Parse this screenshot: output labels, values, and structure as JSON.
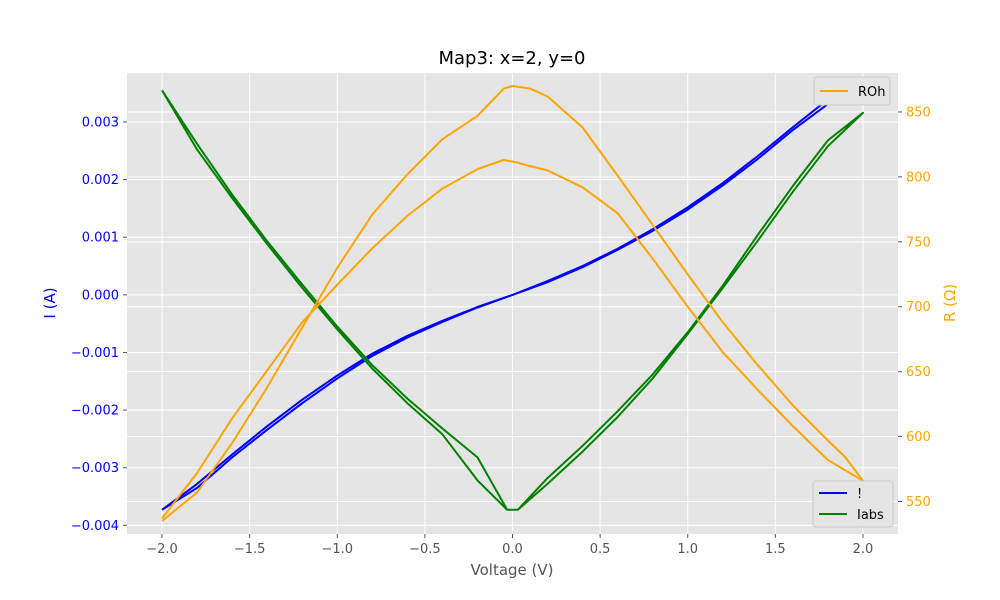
{
  "chart_data": {
    "type": "line",
    "title": "Map3: x=2, y=0",
    "xlabel": "Voltage (V)",
    "ylabel_left": "I (A)",
    "ylabel_right": "R (Ω)",
    "xlim": [
      -2.2,
      2.2
    ],
    "ylim_left": [
      -0.00415,
      0.00385
    ],
    "ylim_right": [
      525,
      880
    ],
    "xticks": [
      -2.0,
      -1.5,
      -1.0,
      -0.5,
      0.0,
      0.5,
      1.0,
      1.5,
      2.0
    ],
    "xtick_labels": [
      "−2.0",
      "−1.5",
      "−1.0",
      "−0.5",
      "0.0",
      "0.5",
      "1.0",
      "1.5",
      "2.0"
    ],
    "yticks_left": [
      -0.004,
      -0.003,
      -0.002,
      -0.001,
      0.0,
      0.001,
      0.002,
      0.003
    ],
    "ytick_labels_left": [
      "−0.004",
      "−0.003",
      "−0.002",
      "−0.001",
      "0.000",
      "0.001",
      "0.002",
      "0.003"
    ],
    "yticks_right": [
      550,
      600,
      650,
      700,
      750,
      800,
      850
    ],
    "ytick_labels_right": [
      "550",
      "600",
      "650",
      "700",
      "750",
      "800",
      "850"
    ],
    "grid": true,
    "background": "#e5e5e5",
    "legend_left": {
      "position": "lower-right",
      "entries": [
        "!",
        "Iabs"
      ]
    },
    "legend_right": {
      "position": "upper-right",
      "entries": [
        "ROh"
      ]
    },
    "colors": {
      "current": "#0000ff",
      "iabs": "#008000",
      "resistance": "#ffa500",
      "left_axis": "#0000ff",
      "right_axis": "#ffa500"
    },
    "series": [
      {
        "name": "!",
        "axis": "left",
        "color": "#0000ff",
        "x": [
          -2.0,
          -1.8,
          -1.6,
          -1.4,
          -1.2,
          -1.0,
          -0.8,
          -0.6,
          -0.4,
          -0.2,
          0.0,
          0.2,
          0.4,
          0.6,
          0.8,
          1.0,
          1.2,
          1.4,
          1.6,
          1.8,
          2.0,
          1.8,
          1.6,
          1.4,
          1.2,
          1.0,
          0.8,
          0.6,
          0.4,
          0.2,
          0.0,
          -0.2,
          -0.4,
          -0.6,
          -0.8,
          -1.0,
          -1.2,
          -1.4,
          -1.6,
          -1.8,
          -2.0
        ],
        "values": [
          -0.00373,
          -0.00335,
          -0.00282,
          -0.00234,
          -0.00188,
          -0.00145,
          -0.00106,
          -0.00074,
          -0.00047,
          -0.00022,
          0.0,
          0.00022,
          0.00048,
          0.00078,
          0.00111,
          0.00148,
          0.0019,
          0.00236,
          0.00286,
          0.00331,
          0.00355,
          0.00339,
          0.00291,
          0.00241,
          0.00194,
          0.00152,
          0.00114,
          0.0008,
          0.0005,
          0.00024,
          0.0,
          -0.00021,
          -0.00045,
          -0.00071,
          -0.00102,
          -0.0014,
          -0.00182,
          -0.00228,
          -0.00277,
          -0.00328,
          -0.00373
        ]
      },
      {
        "name": "Iabs",
        "axis": "left",
        "color": "#008000",
        "x": [
          -2.0,
          -1.8,
          -1.6,
          -1.4,
          -1.2,
          -1.0,
          -0.8,
          -0.6,
          -0.4,
          -0.2,
          -0.03,
          0.03,
          0.2,
          0.4,
          0.6,
          0.8,
          1.0,
          1.2,
          1.4,
          1.6,
          1.8,
          2.0,
          1.8,
          1.6,
          1.4,
          1.2,
          1.0,
          0.8,
          0.6,
          0.4,
          0.2,
          0.03,
          -0.03,
          -0.2,
          -0.4,
          -0.6,
          -0.8,
          -1.0,
          -1.2,
          -1.4,
          -1.6,
          -1.8,
          -2.0
        ],
        "values": [
          0.00355,
          0.00262,
          0.00174,
          0.00093,
          0.00018,
          -0.00055,
          -0.00122,
          -0.0018,
          -0.00232,
          -0.00282,
          -0.00373,
          -0.00373,
          -0.00318,
          -0.00262,
          -0.00202,
          -0.00138,
          -0.00065,
          0.00016,
          0.00104,
          0.00189,
          0.00268,
          0.00316,
          0.00258,
          0.00179,
          0.00094,
          0.00012,
          -0.00068,
          -0.00145,
          -0.00212,
          -0.00272,
          -0.00328,
          -0.00373,
          -0.00373,
          -0.00322,
          -0.00242,
          -0.00188,
          -0.00128,
          -0.0006,
          0.00012,
          0.00088,
          0.00168,
          0.00252,
          0.00355
        ]
      },
      {
        "name": "ROh",
        "axis": "right",
        "color": "#ffa500",
        "x": [
          -2.0,
          -1.8,
          -1.6,
          -1.4,
          -1.2,
          -1.0,
          -0.8,
          -0.6,
          -0.4,
          -0.2,
          -0.05,
          0.0,
          0.1,
          0.2,
          0.4,
          0.6,
          0.8,
          1.0,
          1.2,
          1.4,
          1.6,
          1.8,
          1.9,
          2.0,
          1.8,
          1.6,
          1.4,
          1.2,
          1.0,
          0.8,
          0.6,
          0.4,
          0.2,
          0.08,
          0.03,
          -0.05,
          -0.2,
          -0.4,
          -0.6,
          -0.8,
          -1.0,
          -1.2,
          -1.4,
          -1.6,
          -1.8,
          -2.0
        ],
        "values": [
          535,
          557,
          595,
          638,
          684,
          730,
          771,
          802,
          829,
          847,
          868,
          870,
          868,
          862,
          838,
          801,
          763,
          725,
          688,
          655,
          624,
          597,
          584,
          566,
          582,
          608,
          636,
          665,
          700,
          737,
          772,
          792,
          805,
          809,
          811,
          813,
          806,
          791,
          770,
          745,
          717,
          688,
          651,
          614,
          572,
          537
        ]
      }
    ]
  }
}
